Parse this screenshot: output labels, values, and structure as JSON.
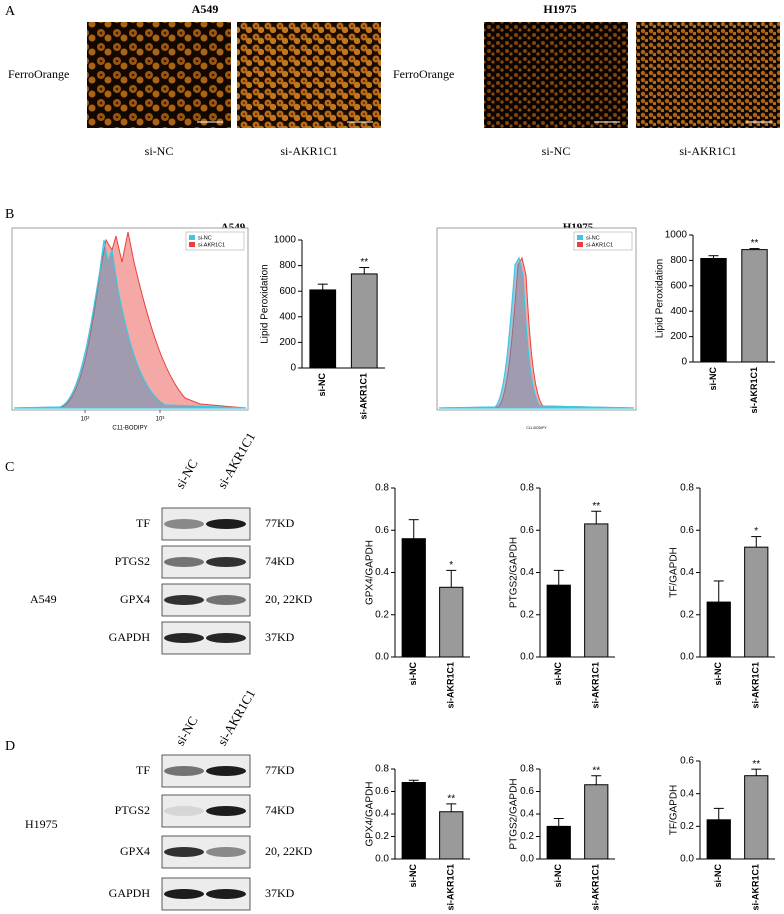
{
  "panel_labels": [
    "A",
    "B",
    "C",
    "D"
  ],
  "micrographs": [
    {
      "title": "A549",
      "row_label": "FerroOrange",
      "captions": [
        "si-NC",
        "si-AKR1C1"
      ]
    },
    {
      "title": "H1975",
      "row_label": "FerroOrange",
      "captions": [
        "si-NC",
        "si-AKR1C1"
      ]
    }
  ],
  "flow": [
    {
      "title": "A549",
      "x_label": "C11-BODIPY",
      "xticks": [
        "10²",
        "10³"
      ],
      "series": [
        {
          "name": "si-NC",
          "color": "#3fc6e2"
        },
        {
          "name": "si-AKR1C1",
          "color": "#e8403c"
        }
      ]
    },
    {
      "title": "H1975",
      "x_label": "C11-BODIPY",
      "series": [
        {
          "name": "si-NC",
          "color": "#3fc6e2"
        },
        {
          "name": "si-AKR1C1",
          "color": "#e8403c"
        }
      ]
    }
  ],
  "blots": [
    {
      "cell_line": "A549",
      "lanes": [
        "si-NC",
        "si-AKR1C1"
      ],
      "rows": [
        {
          "protein": "TF",
          "size": "77KD"
        },
        {
          "protein": "PTGS2",
          "size": "74KD"
        },
        {
          "protein": "GPX4",
          "size": "20, 22KD"
        },
        {
          "protein": "GAPDH",
          "size": "37KD"
        }
      ]
    },
    {
      "cell_line": "H1975",
      "lanes": [
        "si-NC",
        "si-AKR1C1"
      ],
      "rows": [
        {
          "protein": "TF",
          "size": "77KD"
        },
        {
          "protein": "PTGS2",
          "size": "74KD"
        },
        {
          "protein": "GPX4",
          "size": "20, 22KD"
        },
        {
          "protein": "GAPDH",
          "size": "37KD"
        }
      ]
    }
  ],
  "chart_data": [
    {
      "type": "bar",
      "ylabel": "Lipid Peroxidation",
      "categories": [
        "si-NC",
        "si-AKR1C1"
      ],
      "values": [
        610,
        735
      ],
      "errors": [
        45,
        50
      ],
      "colors": [
        "#000000",
        "#9a9a9a"
      ],
      "significance": "**",
      "ylim": [
        0,
        1000
      ],
      "yticks": [
        0,
        200,
        400,
        600,
        800,
        1000
      ]
    },
    {
      "type": "bar",
      "ylabel": "Lipid Peroxidation",
      "categories": [
        "si-NC",
        "si-AKR1C1"
      ],
      "values": [
        815,
        885
      ],
      "errors": [
        22,
        8
      ],
      "colors": [
        "#000000",
        "#9a9a9a"
      ],
      "significance": "**",
      "ylim": [
        0,
        1000
      ],
      "yticks": [
        0,
        200,
        400,
        600,
        800,
        1000
      ]
    },
    {
      "type": "bar",
      "ylabel": "GPX4/GAPDH",
      "categories": [
        "si-NC",
        "si-AKR1C1"
      ],
      "values": [
        0.56,
        0.33
      ],
      "errors": [
        0.09,
        0.08
      ],
      "colors": [
        "#000000",
        "#9a9a9a"
      ],
      "significance": "*",
      "ylim": [
        0,
        0.8
      ],
      "yticks": [
        {
          "value": 0,
          "label": "0.0"
        },
        0.2,
        0.4,
        0.6,
        0.8
      ]
    },
    {
      "type": "bar",
      "ylabel": "PTGS2/GAPDH",
      "categories": [
        "si-NC",
        "si-AKR1C1"
      ],
      "values": [
        0.34,
        0.63
      ],
      "errors": [
        0.07,
        0.06
      ],
      "colors": [
        "#000000",
        "#9a9a9a"
      ],
      "significance": "**",
      "ylim": [
        0,
        0.8
      ],
      "yticks": [
        {
          "value": 0,
          "label": "0.0"
        },
        0.2,
        0.4,
        0.6,
        0.8
      ]
    },
    {
      "type": "bar",
      "ylabel": "TF/GAPDH",
      "categories": [
        "si-NC",
        "si-AKR1C1"
      ],
      "values": [
        0.26,
        0.52
      ],
      "errors": [
        0.1,
        0.05
      ],
      "colors": [
        "#000000",
        "#9a9a9a"
      ],
      "significance": "*",
      "ylim": [
        0,
        0.8
      ],
      "yticks": [
        {
          "value": 0,
          "label": "0.0"
        },
        0.2,
        0.4,
        0.6,
        0.8
      ]
    },
    {
      "type": "bar",
      "ylabel": "GPX4/GAPDH",
      "categories": [
        "si-NC",
        "si-AKR1C1"
      ],
      "values": [
        0.68,
        0.42
      ],
      "errors": [
        0.02,
        0.07
      ],
      "colors": [
        "#000000",
        "#9a9a9a"
      ],
      "significance": "**",
      "ylim": [
        0,
        0.8
      ],
      "yticks": [
        {
          "value": 0,
          "label": "0.0"
        },
        0.2,
        0.4,
        0.6,
        0.8
      ]
    },
    {
      "type": "bar",
      "ylabel": "PTGS2/GAPDH",
      "categories": [
        "si-NC",
        "si-AKR1C1"
      ],
      "values": [
        0.29,
        0.66
      ],
      "errors": [
        0.07,
        0.08
      ],
      "colors": [
        "#000000",
        "#9a9a9a"
      ],
      "significance": "**",
      "ylim": [
        0,
        0.8
      ],
      "yticks": [
        {
          "value": 0,
          "label": "0.0"
        },
        0.2,
        0.4,
        0.6,
        0.8
      ]
    },
    {
      "type": "bar",
      "ylabel": "TF/GAPDH",
      "categories": [
        "si-NC",
        "si-AKR1C1"
      ],
      "values": [
        0.24,
        0.51
      ],
      "errors": [
        0.07,
        0.04
      ],
      "colors": [
        "#000000",
        "#9a9a9a"
      ],
      "significance": "**",
      "ylim": [
        0,
        0.6
      ],
      "yticks": [
        {
          "value": 0,
          "label": "0.0"
        },
        0.2,
        0.4,
        0.6
      ]
    }
  ]
}
